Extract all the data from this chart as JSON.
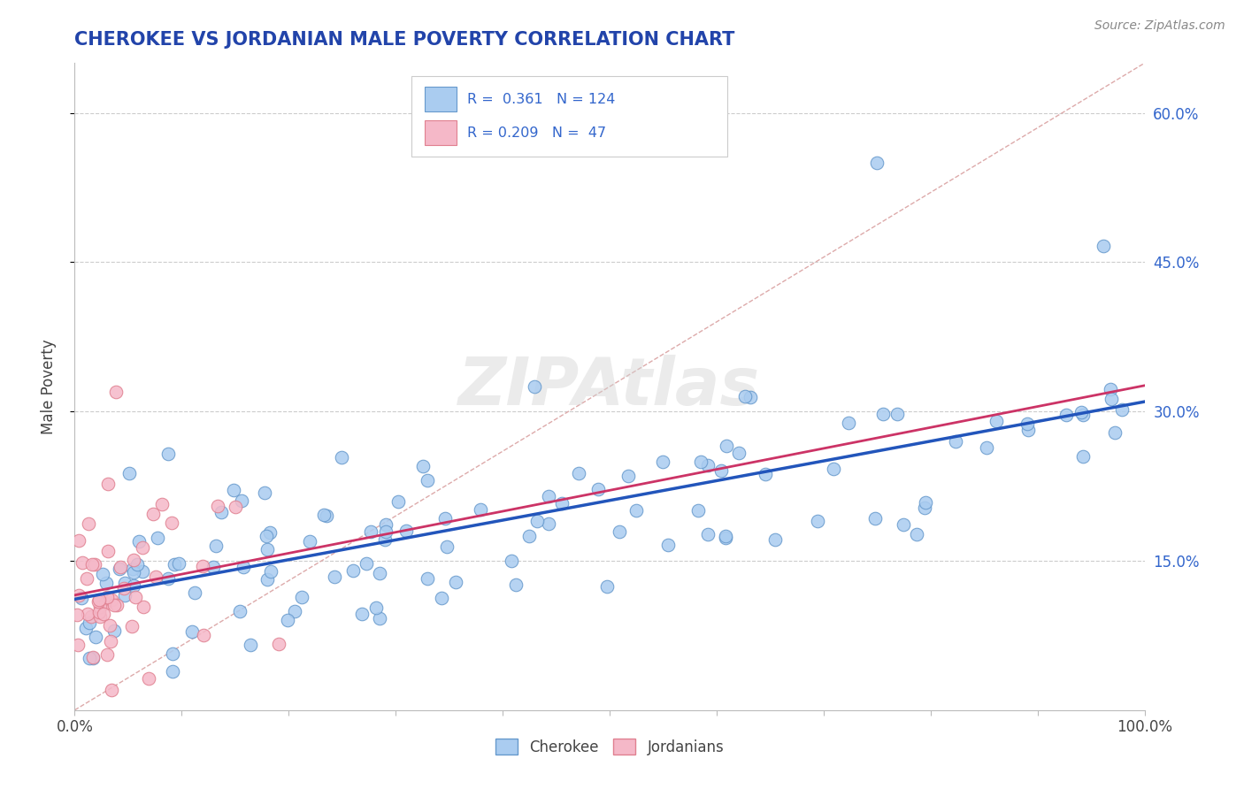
{
  "title": "CHEROKEE VS JORDANIAN MALE POVERTY CORRELATION CHART",
  "source_text": "Source: ZipAtlas.com",
  "ylabel": "Male Poverty",
  "xlim": [
    0,
    100
  ],
  "ylim": [
    0,
    65
  ],
  "y_tick_positions": [
    15,
    30,
    45,
    60
  ],
  "y_tick_labels": [
    "15.0%",
    "30.0%",
    "45.0%",
    "60.0%"
  ],
  "cherokee_color": "#aaccf0",
  "cherokee_edge": "#6699cc",
  "jordanian_color": "#f5b8c8",
  "jordanian_edge": "#e08090",
  "cherokee_R": 0.361,
  "cherokee_N": 124,
  "jordanian_R": 0.209,
  "jordanian_N": 47,
  "cherokee_line_color": "#2255bb",
  "jordanian_line_color": "#cc3366",
  "watermark": "ZIPAtlas",
  "title_color": "#2244aa",
  "background_color": "#ffffff",
  "grid_color": "#cccccc",
  "diag_color": "#ddaaaa"
}
